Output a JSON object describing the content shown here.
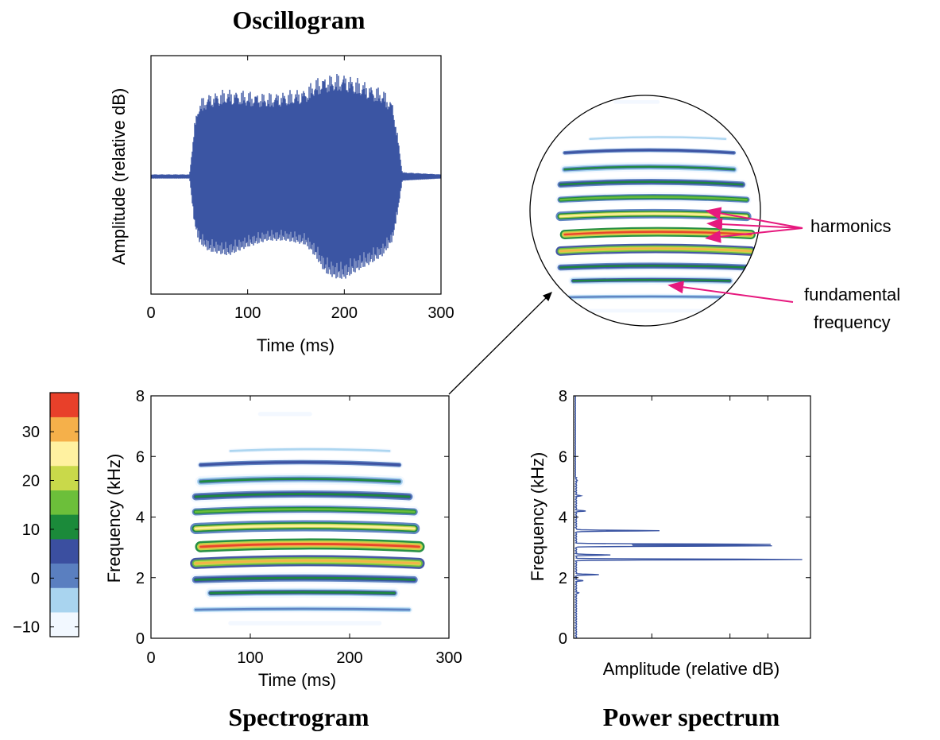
{
  "titles": {
    "oscillogram": "Oscillogram",
    "spectrogram": "Spectrogram",
    "power_spectrum": "Power spectrum"
  },
  "annotations": {
    "harmonics": "harmonics",
    "fundamental_line1": "fundamental",
    "fundamental_line2": "frequency"
  },
  "colors": {
    "waveform": "#3b55a3",
    "arrow_magenta": "#e6197e",
    "axis": "#000000",
    "colormap": [
      "#f2f8ff",
      "#a9d4ef",
      "#5a7fc0",
      "#3b4fa0",
      "#1b8a3a",
      "#6cbf3a",
      "#c9d94a",
      "#fff1a0",
      "#f5b04a",
      "#e8402a"
    ]
  },
  "chart_data": [
    {
      "id": "oscillogram",
      "type": "line",
      "title": "Oscillogram",
      "xlabel": "Time (ms)",
      "ylabel": "Amplitude (relative dB)",
      "xlim": [
        0,
        300
      ],
      "xticks": [
        0,
        100,
        200,
        300
      ],
      "envelope": {
        "t": [
          0,
          40,
          45,
          50,
          60,
          80,
          100,
          120,
          140,
          160,
          170,
          180,
          190,
          200,
          210,
          220,
          230,
          240,
          250,
          255,
          260,
          300
        ],
        "upper": [
          0.02,
          0.02,
          0.5,
          0.72,
          0.78,
          0.82,
          0.8,
          0.78,
          0.8,
          0.83,
          0.92,
          0.95,
          0.96,
          0.97,
          0.93,
          0.9,
          0.85,
          0.82,
          0.7,
          0.4,
          0.04,
          0.02
        ],
        "lower": [
          -0.02,
          -0.02,
          -0.45,
          -0.62,
          -0.7,
          -0.74,
          -0.66,
          -0.6,
          -0.6,
          -0.64,
          -0.75,
          -0.9,
          -0.95,
          -0.96,
          -0.9,
          -0.85,
          -0.8,
          -0.74,
          -0.6,
          -0.35,
          -0.04,
          -0.02
        ]
      }
    },
    {
      "id": "spectrogram",
      "type": "heatmap",
      "title": "Spectrogram",
      "xlabel": "Time (ms)",
      "ylabel": "Frequency (kHz)",
      "xlim": [
        0,
        300
      ],
      "ylim": [
        0,
        8
      ],
      "xticks": [
        0,
        100,
        200,
        300
      ],
      "yticks": [
        0,
        2,
        4,
        6,
        8
      ],
      "colorbar": {
        "range": [
          -12,
          38
        ],
        "ticks": [
          -10,
          0,
          10,
          20,
          30
        ]
      },
      "harmonics": [
        {
          "freq": 0.5,
          "db": -8,
          "t0": 80,
          "t1": 230,
          "curve": 0.0
        },
        {
          "freq": 0.95,
          "db": 0,
          "t0": 45,
          "t1": 260,
          "curve": 0.05
        },
        {
          "freq": 1.5,
          "db": 10,
          "t0": 60,
          "t1": 245,
          "curve": 0.05
        },
        {
          "freq": 1.95,
          "db": 12,
          "t0": 45,
          "t1": 265,
          "curve": 0.1
        },
        {
          "freq": 2.5,
          "db": 28,
          "t0": 45,
          "t1": 270,
          "curve": 0.15
        },
        {
          "freq": 3.05,
          "db": 34,
          "t0": 50,
          "t1": 270,
          "curve": 0.15
        },
        {
          "freq": 3.65,
          "db": 24,
          "t0": 45,
          "t1": 265,
          "curve": 0.15
        },
        {
          "freq": 4.2,
          "db": 14,
          "t0": 45,
          "t1": 265,
          "curve": 0.15
        },
        {
          "freq": 4.7,
          "db": 12,
          "t0": 45,
          "t1": 260,
          "curve": 0.15
        },
        {
          "freq": 5.2,
          "db": 8,
          "t0": 50,
          "t1": 250,
          "curve": 0.15
        },
        {
          "freq": 5.75,
          "db": 4,
          "t0": 50,
          "t1": 250,
          "curve": 0.15
        },
        {
          "freq": 6.2,
          "db": -4,
          "t0": 80,
          "t1": 240,
          "curve": 0.1
        },
        {
          "freq": 7.4,
          "db": -9,
          "t0": 110,
          "t1": 160,
          "curve": 0.0
        }
      ]
    },
    {
      "id": "power_spectrum",
      "type": "line",
      "title": "Power spectrum",
      "xlabel": "Amplitude (relative dB)",
      "ylabel": "Frequency (kHz)",
      "ylim": [
        0,
        8
      ],
      "yticks": [
        0,
        2,
        4,
        6,
        8
      ],
      "xlim": [
        0,
        1
      ],
      "peaks": [
        {
          "freq": 0.0,
          "amp": 0.0
        },
        {
          "freq": 1.5,
          "amp": 0.01
        },
        {
          "freq": 1.9,
          "amp": 0.03
        },
        {
          "freq": 2.1,
          "amp": 0.1
        },
        {
          "freq": 2.6,
          "amp": 1.0
        },
        {
          "freq": 2.75,
          "amp": 0.15
        },
        {
          "freq": 3.05,
          "amp": 0.87
        },
        {
          "freq": 3.1,
          "amp": 0.86
        },
        {
          "freq": 3.55,
          "amp": 0.37
        },
        {
          "freq": 4.2,
          "amp": 0.04
        },
        {
          "freq": 4.7,
          "amp": 0.02
        },
        {
          "freq": 5.2,
          "amp": 0.005
        }
      ]
    }
  ]
}
